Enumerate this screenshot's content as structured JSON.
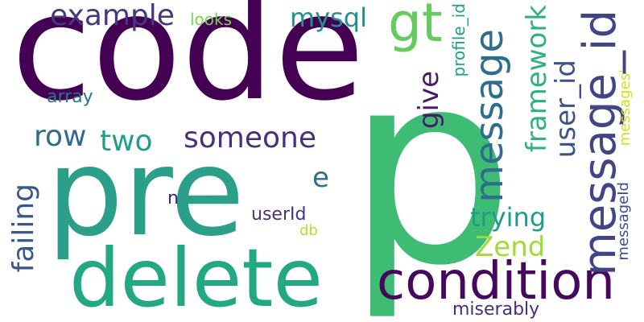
{
  "words": [
    {
      "text": "code",
      "color": "#440154"
    },
    {
      "text": "p",
      "color": "#3ebc74"
    },
    {
      "text": "pre",
      "color": "#2b9f89"
    },
    {
      "text": "delete",
      "color": "#23a884"
    },
    {
      "text": "condition",
      "color": "#46085c"
    },
    {
      "text": "message_id",
      "color": "#414487"
    },
    {
      "text": "message",
      "color": "#2e6d8e"
    },
    {
      "text": "gt",
      "color": "#65cb5e"
    },
    {
      "text": "example",
      "color": "#453781"
    },
    {
      "text": "mysql",
      "color": "#21918c"
    },
    {
      "text": "framework",
      "color": "#2db27d"
    },
    {
      "text": "user_id",
      "color": "#3b528b"
    },
    {
      "text": "someone",
      "color": "#472f7d"
    },
    {
      "text": "two",
      "color": "#1f9e89"
    },
    {
      "text": "row",
      "color": "#306a8e"
    },
    {
      "text": "give",
      "color": "#481a6c"
    },
    {
      "text": "failing",
      "color": "#38588c"
    },
    {
      "text": "trying",
      "color": "#1e9b8a"
    },
    {
      "text": "Zend",
      "color": "#a0da39"
    },
    {
      "text": "e",
      "color": "#2e6e8e"
    },
    {
      "text": "looks",
      "color": "#7ad151"
    },
    {
      "text": "array",
      "color": "#2c728e"
    },
    {
      "text": "profile_id",
      "color": "#1fa187"
    },
    {
      "text": "messages'",
      "color": "#cde11d"
    },
    {
      "text": "n",
      "color": "#482878"
    },
    {
      "text": "userId",
      "color": "#46337e"
    },
    {
      "text": "db",
      "color": "#b5de2b"
    },
    {
      "text": "messageId",
      "color": "#3e4a89"
    },
    {
      "text": "miserably",
      "color": "#472d7b"
    }
  ]
}
